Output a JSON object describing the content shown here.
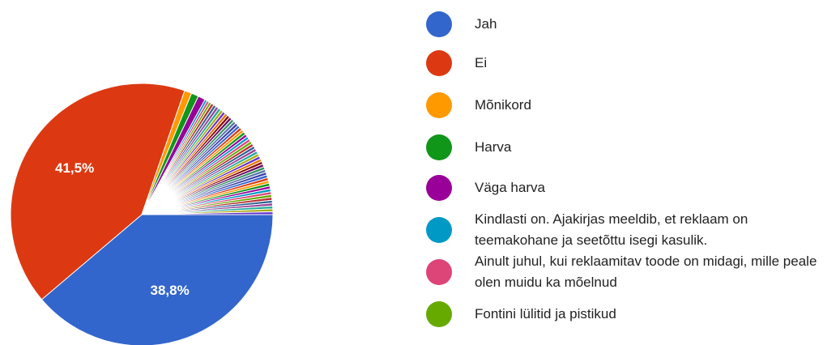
{
  "chart_data": {
    "type": "pie",
    "categories": [
      "Jah",
      "Ei",
      "Mõnikord",
      "Harva",
      "Väga harva",
      "Kindlasti on. Ajakirjas meeldib, et reklaam on teemakohane ja seetõttu isegi kasulik.",
      "Ainult juhul, kui reklaamitav toode on midagi, mille peale olen muidu ka mõelnud",
      "Fontini lülitid ja pistikud",
      null,
      null,
      null,
      null,
      null,
      null,
      null,
      null,
      null,
      null,
      null,
      null,
      null,
      null,
      null,
      null,
      null,
      null,
      null,
      null,
      null,
      null,
      null,
      null,
      null,
      null,
      null,
      null,
      null,
      null,
      null,
      null,
      null,
      null,
      null,
      null,
      null,
      null,
      null,
      null,
      null,
      null,
      null,
      null,
      null,
      null
    ],
    "values": [
      38.8,
      41.5,
      0.9,
      0.9,
      0.9,
      0.3,
      0.3,
      0.3,
      0.35,
      0.35,
      0.35,
      0.35,
      0.35,
      0.35,
      0.35,
      0.35,
      0.35,
      0.35,
      0.35,
      0.35,
      0.35,
      0.35,
      0.35,
      0.35,
      0.35,
      0.35,
      0.35,
      0.35,
      0.35,
      0.35,
      0.35,
      0.35,
      0.35,
      0.35,
      0.35,
      0.35,
      0.35,
      0.35,
      0.35,
      0.35,
      0.35,
      0.35,
      0.35,
      0.35,
      0.35,
      0.35,
      0.35,
      0.35,
      0.35,
      0.35,
      0.35,
      0.35,
      0.35,
      0.35
    ],
    "value_labels": [
      "38,8%",
      "41,5%",
      null,
      null,
      null,
      null,
      null,
      null,
      null,
      null,
      null,
      null,
      null,
      null,
      null,
      null,
      null,
      null,
      null,
      null,
      null,
      null,
      null,
      null,
      null,
      null,
      null,
      null,
      null,
      null,
      null,
      null,
      null,
      null,
      null,
      null,
      null,
      null,
      null,
      null,
      null,
      null,
      null,
      null,
      null,
      null,
      null,
      null,
      null,
      null,
      null,
      null,
      null,
      null
    ],
    "colors": [
      "#3366cc",
      "#dc3912",
      "#ff9900",
      "#109618",
      "#990099",
      "#0099c6",
      "#dd4477",
      "#66aa00",
      "#b82e2e",
      "#316395",
      "#994499",
      "#22aa99",
      "#aaaa11",
      "#6633cc",
      "#e67300",
      "#8b0707",
      "#651067",
      "#329262",
      "#5574a6",
      "#3b3eac"
    ]
  }
}
